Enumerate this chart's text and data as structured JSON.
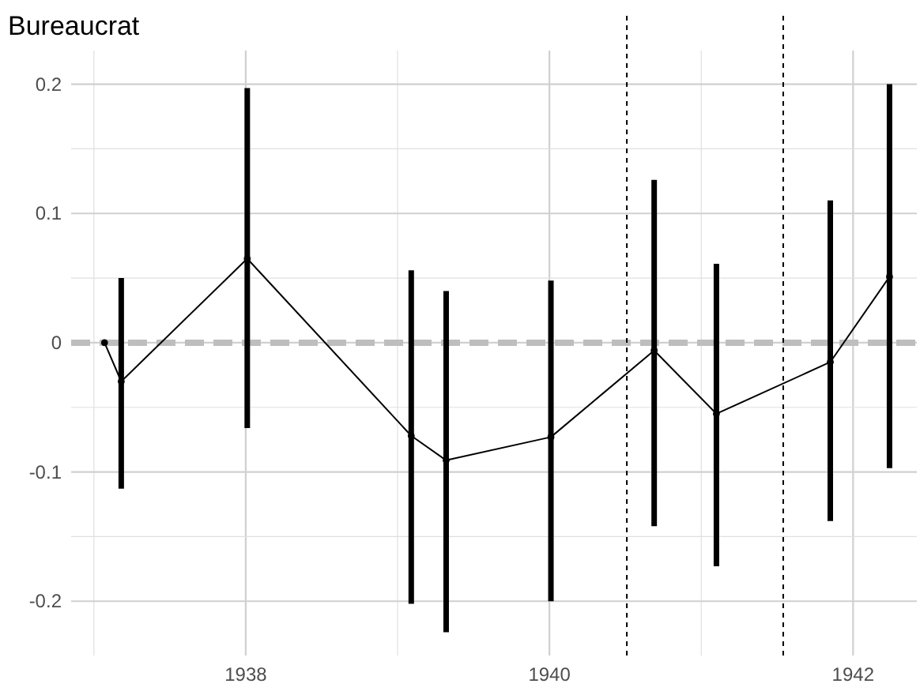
{
  "chart_data": {
    "type": "line",
    "title": "Bureaucrat",
    "x": [
      1937.07,
      1937.18,
      1938.01,
      1939.09,
      1939.32,
      1940.01,
      1940.69,
      1941.1,
      1941.85,
      1942.24
    ],
    "series": [
      {
        "color": "#000000",
        "values": [
          0,
          -0.03,
          0.065,
          -0.072,
          -0.091,
          -0.073,
          -0.006,
          -0.055,
          -0.015,
          0.051
        ],
        "errors": [
          null,
          [
            -0.113,
            0.05
          ],
          [
            -0.066,
            0.197
          ],
          [
            -0.202,
            0.056
          ],
          [
            -0.224,
            0.04
          ],
          [
            -0.2,
            0.048
          ],
          [
            -0.142,
            0.126
          ],
          [
            -0.173,
            0.061
          ],
          [
            -0.138,
            0.11
          ],
          [
            -0.097,
            0.2
          ]
        ]
      }
    ],
    "xlim": [
      1936.85,
      1942.42
    ],
    "ylim": [
      -0.242,
      0.226
    ],
    "xticks": [
      {
        "value": 1937,
        "label": null
      },
      1938,
      {
        "value": 1939,
        "label": null
      },
      1940,
      {
        "value": 1941,
        "label": null
      },
      1942
    ],
    "yticks": [
      -0.2,
      {
        "value": -0.15,
        "label": null
      },
      -0.1,
      {
        "value": -0.05,
        "label": null
      },
      0.0,
      {
        "value": 0.05,
        "label": null
      },
      0.1,
      {
        "value": 0.15,
        "label": null
      },
      0.2
    ],
    "grid": true,
    "marker": "circle",
    "line_style": "solid",
    "ref_lines": [
      {
        "axis": "y",
        "value": 0,
        "color": "#bebebe",
        "line_style": "dashed"
      },
      {
        "axis": "x",
        "value": 1940.51,
        "color": "#000000",
        "line_style": "dotted"
      },
      {
        "axis": "x",
        "value": 1941.54,
        "color": "#000000",
        "line_style": "dotted"
      }
    ]
  }
}
